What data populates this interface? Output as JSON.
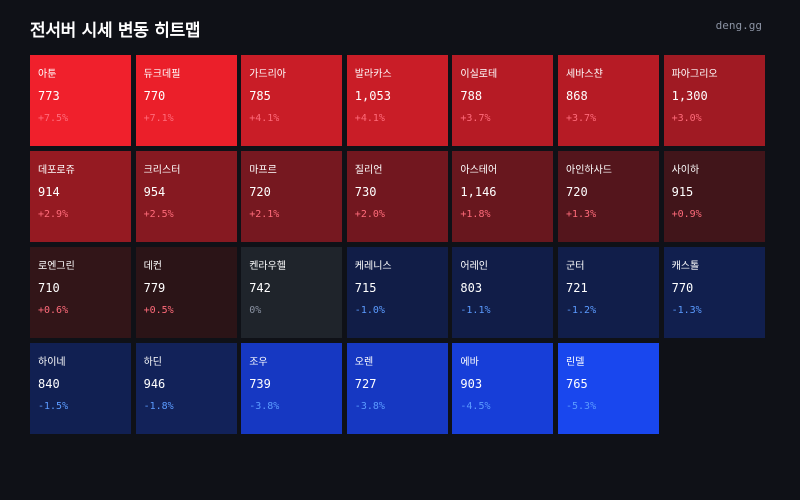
{
  "header": {
    "title": "전서버 시세 변동 히트맵",
    "brand": "deng.gg"
  },
  "colors": {
    "background": "#0f1117",
    "neutral": "#1f242b",
    "pos_text": "#ff6b7a",
    "neg_text": "#5b9bff",
    "neutral_text": "#8b93a3"
  },
  "chart_data": {
    "type": "heatmap",
    "columns": 7,
    "value_label_format": "percent",
    "cells": [
      {
        "name": "아툰",
        "price": "773",
        "change": "+7.5%",
        "pct": 7.5,
        "color": "#f0202c"
      },
      {
        "name": "듀크데필",
        "price": "770",
        "change": "+7.1%",
        "pct": 7.1,
        "color": "#eb1f2a"
      },
      {
        "name": "가드리아",
        "price": "785",
        "change": "+4.1%",
        "pct": 4.1,
        "color": "#c91d27"
      },
      {
        "name": "발라카스",
        "price": "1,053",
        "change": "+4.1%",
        "pct": 4.1,
        "color": "#c91d27"
      },
      {
        "name": "이실로테",
        "price": "788",
        "change": "+3.7%",
        "pct": 3.7,
        "color": "#b61b25"
      },
      {
        "name": "세바스챤",
        "price": "868",
        "change": "+3.7%",
        "pct": 3.7,
        "color": "#b61b25"
      },
      {
        "name": "파아그리오",
        "price": "1,300",
        "change": "+3.0%",
        "pct": 3.0,
        "color": "#a01a23"
      },
      {
        "name": "데포로쥬",
        "price": "914",
        "change": "+2.9%",
        "pct": 2.9,
        "color": "#951a22"
      },
      {
        "name": "크리스터",
        "price": "954",
        "change": "+2.5%",
        "pct": 2.5,
        "color": "#861921"
      },
      {
        "name": "마프르",
        "price": "720",
        "change": "+2.1%",
        "pct": 2.1,
        "color": "#761820"
      },
      {
        "name": "질리언",
        "price": "730",
        "change": "+2.0%",
        "pct": 2.0,
        "color": "#72171f"
      },
      {
        "name": "아스테어",
        "price": "1,146",
        "change": "+1.8%",
        "pct": 1.8,
        "color": "#68171e"
      },
      {
        "name": "아인하사드",
        "price": "720",
        "change": "+1.3%",
        "pct": 1.3,
        "color": "#54151c"
      },
      {
        "name": "사이하",
        "price": "915",
        "change": "+0.9%",
        "pct": 0.9,
        "color": "#41151a"
      },
      {
        "name": "로엔그린",
        "price": "710",
        "change": "+0.6%",
        "pct": 0.6,
        "color": "#321518"
      },
      {
        "name": "데컨",
        "price": "779",
        "change": "+0.5%",
        "pct": 0.5,
        "color": "#2b1417"
      },
      {
        "name": "켄라우헬",
        "price": "742",
        "change": "0%",
        "pct": 0,
        "color": "#1f242b"
      },
      {
        "name": "케레니스",
        "price": "715",
        "change": "-1.0%",
        "pct": -1.0,
        "color": "#111d47"
      },
      {
        "name": "어레인",
        "price": "803",
        "change": "-1.1%",
        "pct": -1.1,
        "color": "#111d48"
      },
      {
        "name": "군터",
        "price": "721",
        "change": "-1.2%",
        "pct": -1.2,
        "color": "#111e4a"
      },
      {
        "name": "캐스톨",
        "price": "770",
        "change": "-1.3%",
        "pct": -1.3,
        "color": "#111f4e"
      },
      {
        "name": "하이네",
        "price": "840",
        "change": "-1.5%",
        "pct": -1.5,
        "color": "#112052"
      },
      {
        "name": "하딘",
        "price": "946",
        "change": "-1.8%",
        "pct": -1.8,
        "color": "#122259"
      },
      {
        "name": "조우",
        "price": "739",
        "change": "-3.8%",
        "pct": -3.8,
        "color": "#1638c2"
      },
      {
        "name": "오렌",
        "price": "727",
        "change": "-3.8%",
        "pct": -3.8,
        "color": "#1638c2"
      },
      {
        "name": "에바",
        "price": "903",
        "change": "-4.5%",
        "pct": -4.5,
        "color": "#173ed8"
      },
      {
        "name": "린델",
        "price": "765",
        "change": "-5.3%",
        "pct": -5.3,
        "color": "#1947ee"
      }
    ]
  }
}
